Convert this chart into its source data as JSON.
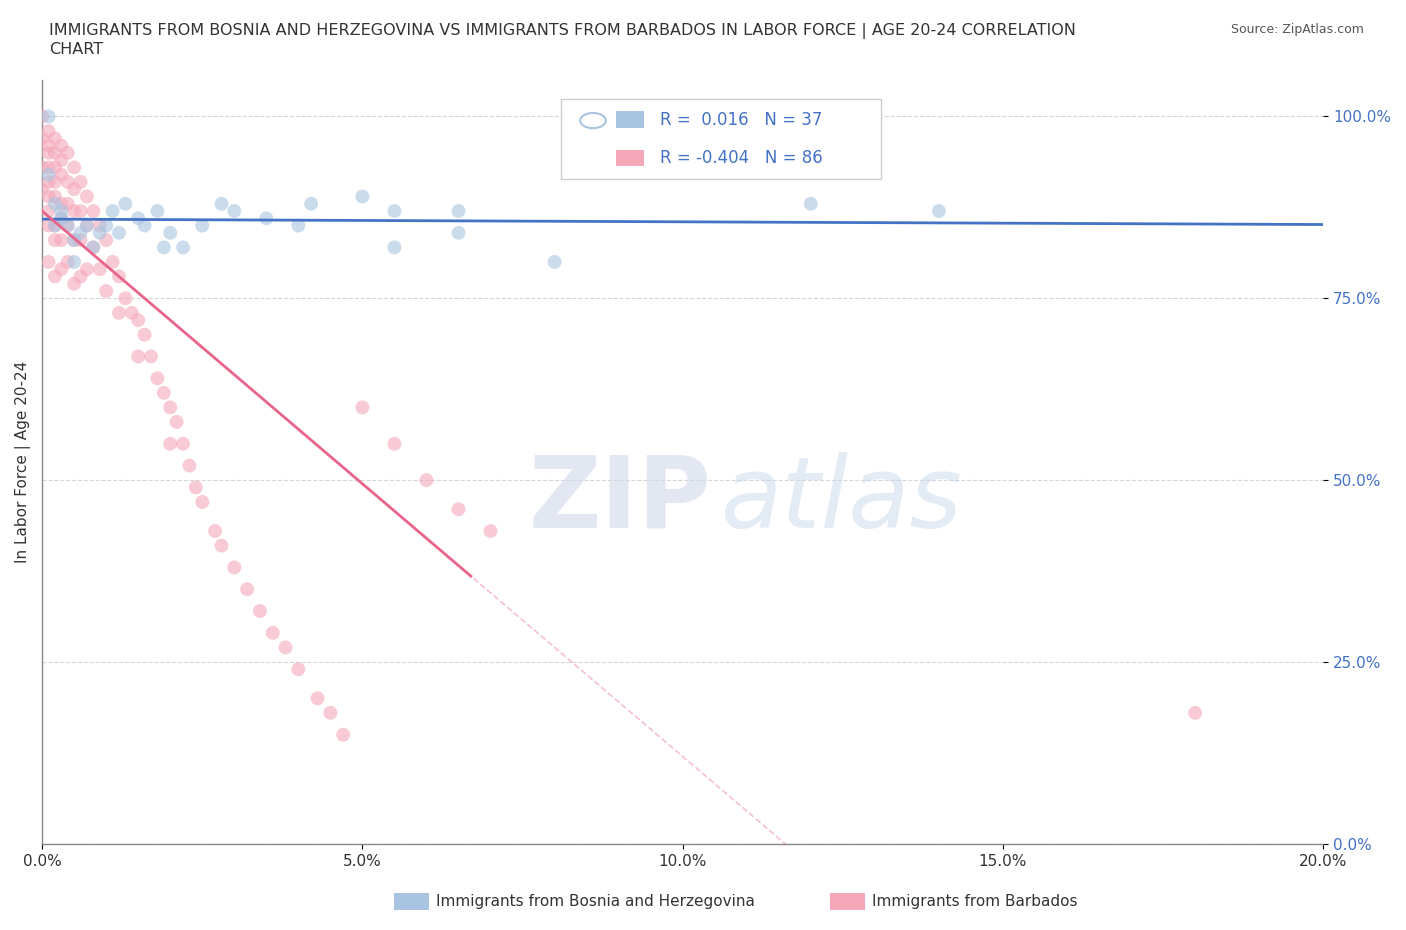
{
  "title": "IMMIGRANTS FROM BOSNIA AND HERZEGOVINA VS IMMIGRANTS FROM BARBADOS IN LABOR FORCE | AGE 20-24 CORRELATION\nCHART",
  "source": "Source: ZipAtlas.com",
  "ylabel": "In Labor Force | Age 20-24",
  "xlim": [
    0.0,
    0.2
  ],
  "ylim": [
    0.0,
    1.05
  ],
  "yticks": [
    0.0,
    0.25,
    0.5,
    0.75,
    1.0
  ],
  "ytick_labels": [
    "0.0%",
    "25.0%",
    "50.0%",
    "75.0%",
    "100.0%"
  ],
  "xticks": [
    0.0,
    0.05,
    0.1,
    0.15,
    0.2
  ],
  "xtick_labels": [
    "0.0%",
    "5.0%",
    "10.0%",
    "15.0%",
    "20.0%"
  ],
  "color_bosnia": "#a8c4e0",
  "color_barbados": "#f4a7b9",
  "line_color_bosnia": "#4472c4",
  "line_color_barbados": "#e8648a",
  "R_bosnia": 0.016,
  "N_bosnia": 37,
  "R_barbados": -0.404,
  "N_barbados": 86,
  "legend_label_bosnia": "Immigrants from Bosnia and Herzegovina",
  "legend_label_barbados": "Immigrants from Barbados",
  "watermark_zip": "ZIP",
  "watermark_atlas": "atlas",
  "bosnia_x": [
    0.001,
    0.001,
    0.002,
    0.002,
    0.003,
    0.003,
    0.004,
    0.005,
    0.005,
    0.006,
    0.007,
    0.008,
    0.009,
    0.01,
    0.011,
    0.012,
    0.013,
    0.015,
    0.016,
    0.018,
    0.019,
    0.02,
    0.022,
    0.025,
    0.028,
    0.03,
    0.035,
    0.04,
    0.042,
    0.05,
    0.055,
    0.065,
    0.12,
    0.14,
    0.055,
    0.065,
    0.08
  ],
  "bosnia_y": [
    1.0,
    0.92,
    0.88,
    0.85,
    0.87,
    0.86,
    0.85,
    0.83,
    0.8,
    0.84,
    0.85,
    0.82,
    0.84,
    0.85,
    0.87,
    0.84,
    0.88,
    0.86,
    0.85,
    0.87,
    0.82,
    0.84,
    0.82,
    0.85,
    0.88,
    0.87,
    0.86,
    0.85,
    0.88,
    0.89,
    0.87,
    0.87,
    0.88,
    0.87,
    0.82,
    0.84,
    0.8
  ],
  "barbados_x": [
    0.0,
    0.0,
    0.0,
    0.0,
    0.001,
    0.001,
    0.001,
    0.001,
    0.001,
    0.001,
    0.001,
    0.001,
    0.001,
    0.002,
    0.002,
    0.002,
    0.002,
    0.002,
    0.002,
    0.002,
    0.002,
    0.003,
    0.003,
    0.003,
    0.003,
    0.003,
    0.003,
    0.003,
    0.004,
    0.004,
    0.004,
    0.004,
    0.004,
    0.005,
    0.005,
    0.005,
    0.005,
    0.005,
    0.006,
    0.006,
    0.006,
    0.006,
    0.007,
    0.007,
    0.007,
    0.008,
    0.008,
    0.009,
    0.009,
    0.01,
    0.01,
    0.011,
    0.012,
    0.012,
    0.013,
    0.014,
    0.015,
    0.015,
    0.016,
    0.017,
    0.018,
    0.019,
    0.02,
    0.02,
    0.021,
    0.022,
    0.023,
    0.024,
    0.025,
    0.027,
    0.028,
    0.03,
    0.032,
    0.034,
    0.036,
    0.038,
    0.04,
    0.043,
    0.045,
    0.047,
    0.05,
    0.055,
    0.06,
    0.065,
    0.07,
    0.18
  ],
  "barbados_y": [
    1.0,
    0.97,
    0.93,
    0.9,
    0.98,
    0.96,
    0.95,
    0.93,
    0.91,
    0.89,
    0.87,
    0.85,
    0.8,
    0.97,
    0.95,
    0.93,
    0.91,
    0.89,
    0.85,
    0.83,
    0.78,
    0.96,
    0.94,
    0.92,
    0.88,
    0.86,
    0.83,
    0.79,
    0.95,
    0.91,
    0.88,
    0.85,
    0.8,
    0.93,
    0.9,
    0.87,
    0.83,
    0.77,
    0.91,
    0.87,
    0.83,
    0.78,
    0.89,
    0.85,
    0.79,
    0.87,
    0.82,
    0.85,
    0.79,
    0.83,
    0.76,
    0.8,
    0.78,
    0.73,
    0.75,
    0.73,
    0.72,
    0.67,
    0.7,
    0.67,
    0.64,
    0.62,
    0.6,
    0.55,
    0.58,
    0.55,
    0.52,
    0.49,
    0.47,
    0.43,
    0.41,
    0.38,
    0.35,
    0.32,
    0.29,
    0.27,
    0.24,
    0.2,
    0.18,
    0.15,
    0.6,
    0.55,
    0.5,
    0.46,
    0.43,
    0.18
  ]
}
